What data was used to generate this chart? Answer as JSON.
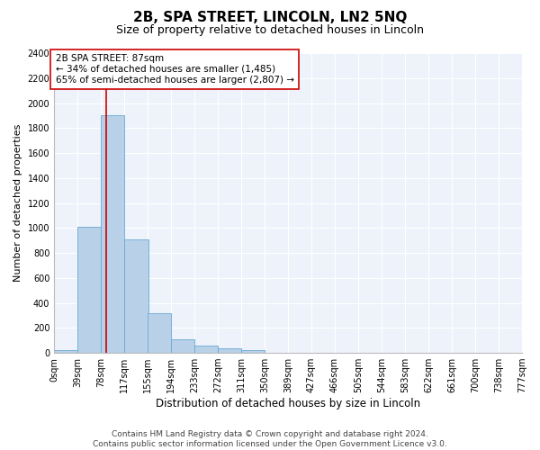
{
  "title": "2B, SPA STREET, LINCOLN, LN2 5NQ",
  "subtitle": "Size of property relative to detached houses in Lincoln",
  "xlabel": "Distribution of detached houses by size in Lincoln",
  "ylabel": "Number of detached properties",
  "bar_color": "#b8d0e8",
  "bar_edge_color": "#6aaad4",
  "background_color": "#eef2fa",
  "grid_color": "#ffffff",
  "bins": [
    0,
    39,
    78,
    117,
    155,
    194,
    233,
    272,
    311,
    350,
    389,
    427,
    466,
    505,
    544,
    583,
    622,
    661,
    700,
    738,
    777
  ],
  "bin_labels": [
    "0sqm",
    "39sqm",
    "78sqm",
    "117sqm",
    "155sqm",
    "194sqm",
    "233sqm",
    "272sqm",
    "311sqm",
    "350sqm",
    "389sqm",
    "427sqm",
    "466sqm",
    "505sqm",
    "544sqm",
    "583sqm",
    "622sqm",
    "661sqm",
    "700sqm",
    "738sqm",
    "777sqm"
  ],
  "values": [
    20,
    1010,
    1900,
    910,
    315,
    110,
    55,
    35,
    20,
    0,
    0,
    0,
    0,
    0,
    0,
    0,
    0,
    0,
    0,
    0
  ],
  "ylim": [
    0,
    2400
  ],
  "yticks": [
    0,
    200,
    400,
    600,
    800,
    1000,
    1200,
    1400,
    1600,
    1800,
    2000,
    2200,
    2400
  ],
  "property_size": 87,
  "red_line_color": "#cc0000",
  "annotation_text_line1": "2B SPA STREET: 87sqm",
  "annotation_text_line2": "← 34% of detached houses are smaller (1,485)",
  "annotation_text_line3": "65% of semi-detached houses are larger (2,807) →",
  "annotation_box_facecolor": "#ffffff",
  "annotation_box_edgecolor": "#cc0000",
  "footer_line1": "Contains HM Land Registry data © Crown copyright and database right 2024.",
  "footer_line2": "Contains public sector information licensed under the Open Government Licence v3.0.",
  "title_fontsize": 11,
  "subtitle_fontsize": 9,
  "axis_label_fontsize": 8,
  "tick_fontsize": 7,
  "annotation_fontsize": 7.5,
  "footer_fontsize": 6.5
}
